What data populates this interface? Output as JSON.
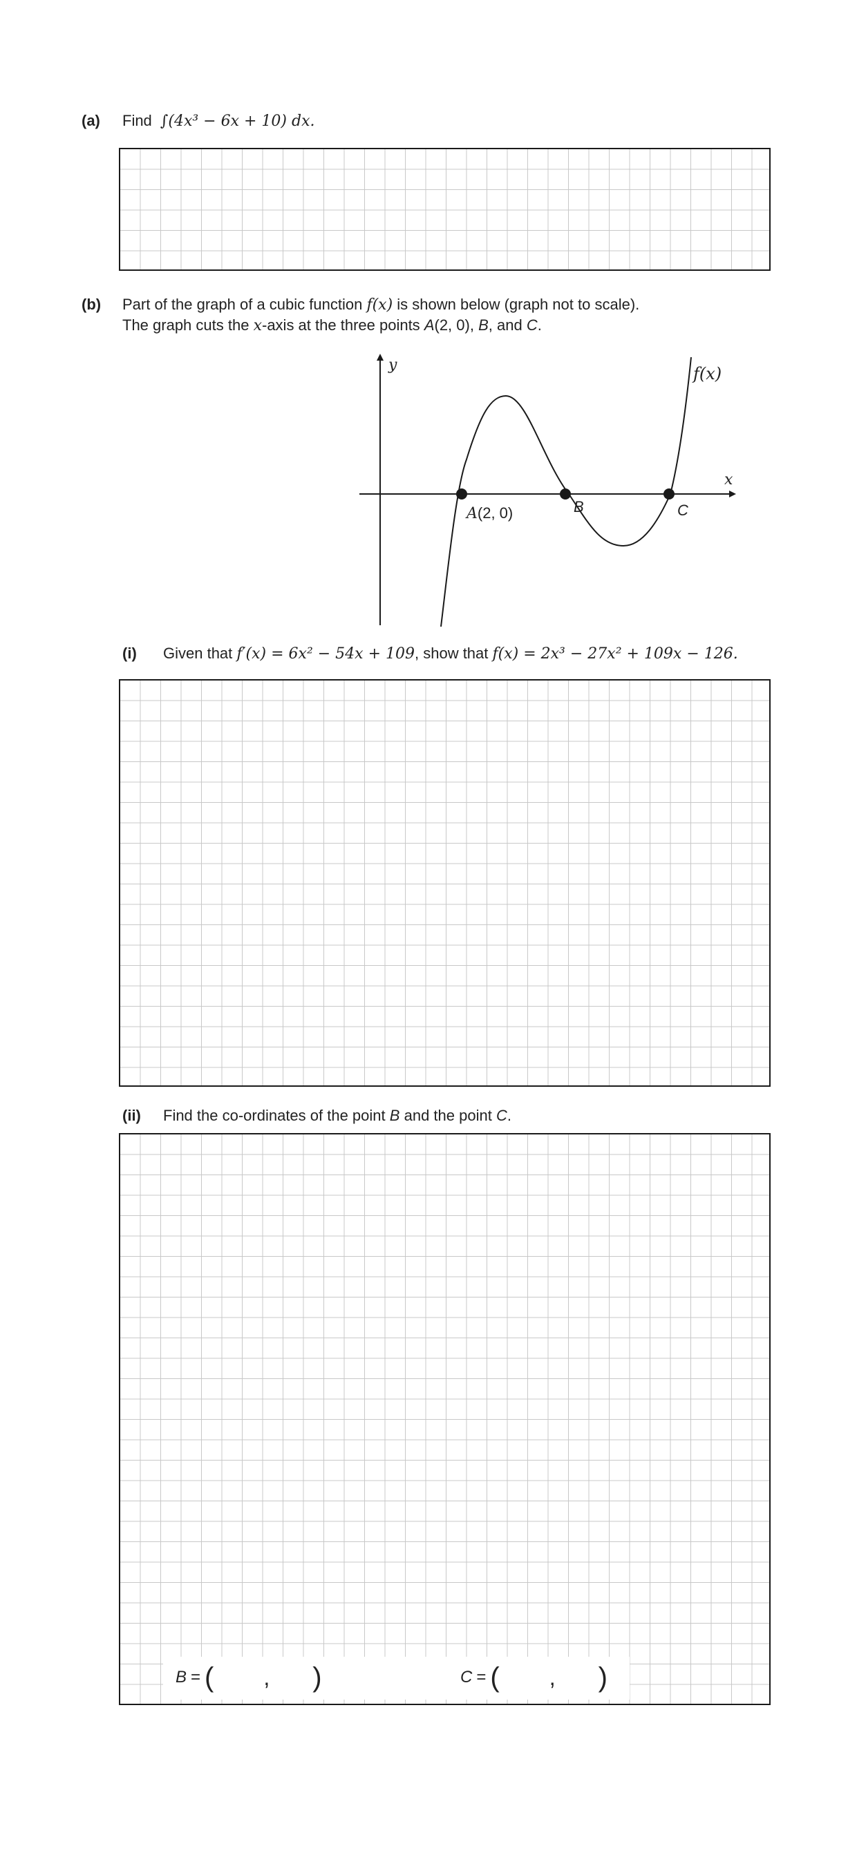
{
  "part_a": {
    "label": "(a)",
    "prefix": "Find",
    "integral": "∫(4x³ − 6x + 10) dx."
  },
  "part_b": {
    "label": "(b)",
    "line1_a": "Part of the graph of a cubic function",
    "line1_fx": "f(x)",
    "line1_b": "is shown below (graph not to scale).",
    "line2_a": "The graph cuts the",
    "line2_x": "x",
    "line2_b": "-axis at the three points",
    "line2_A": "A",
    "line2_A_coords": "(2, 0),",
    "line2_B": "B",
    "line2_and": ", and",
    "line2_C": "C",
    "line2_end": "."
  },
  "graph": {
    "y_axis_label": "y",
    "x_axis_label": "x",
    "curve_label": "f(x)",
    "point_a_label": "A",
    "point_a_coords": "(2, 0)",
    "point_b_label": "B",
    "point_c_label": "C"
  },
  "part_i": {
    "label": "(i)",
    "text_a": "Given that",
    "derivative": "f′(x) = 6x² − 54x + 109",
    "text_b": ", show that",
    "function": "f(x) = 2x³ − 27x² + 109x − 126."
  },
  "part_ii": {
    "label": "(ii)",
    "text_a": "Find the co-ordinates of the point",
    "B": "B",
    "text_b": "and the point",
    "C": "C",
    "end": "."
  },
  "answers": {
    "b_label": "B",
    "c_label": "C",
    "equals": "=",
    "open": "(",
    "comma": ",",
    "close": ")"
  },
  "colors": {
    "grid_line": "#c8c8c8",
    "box_border": "#1a1a1a",
    "text": "#222222"
  }
}
